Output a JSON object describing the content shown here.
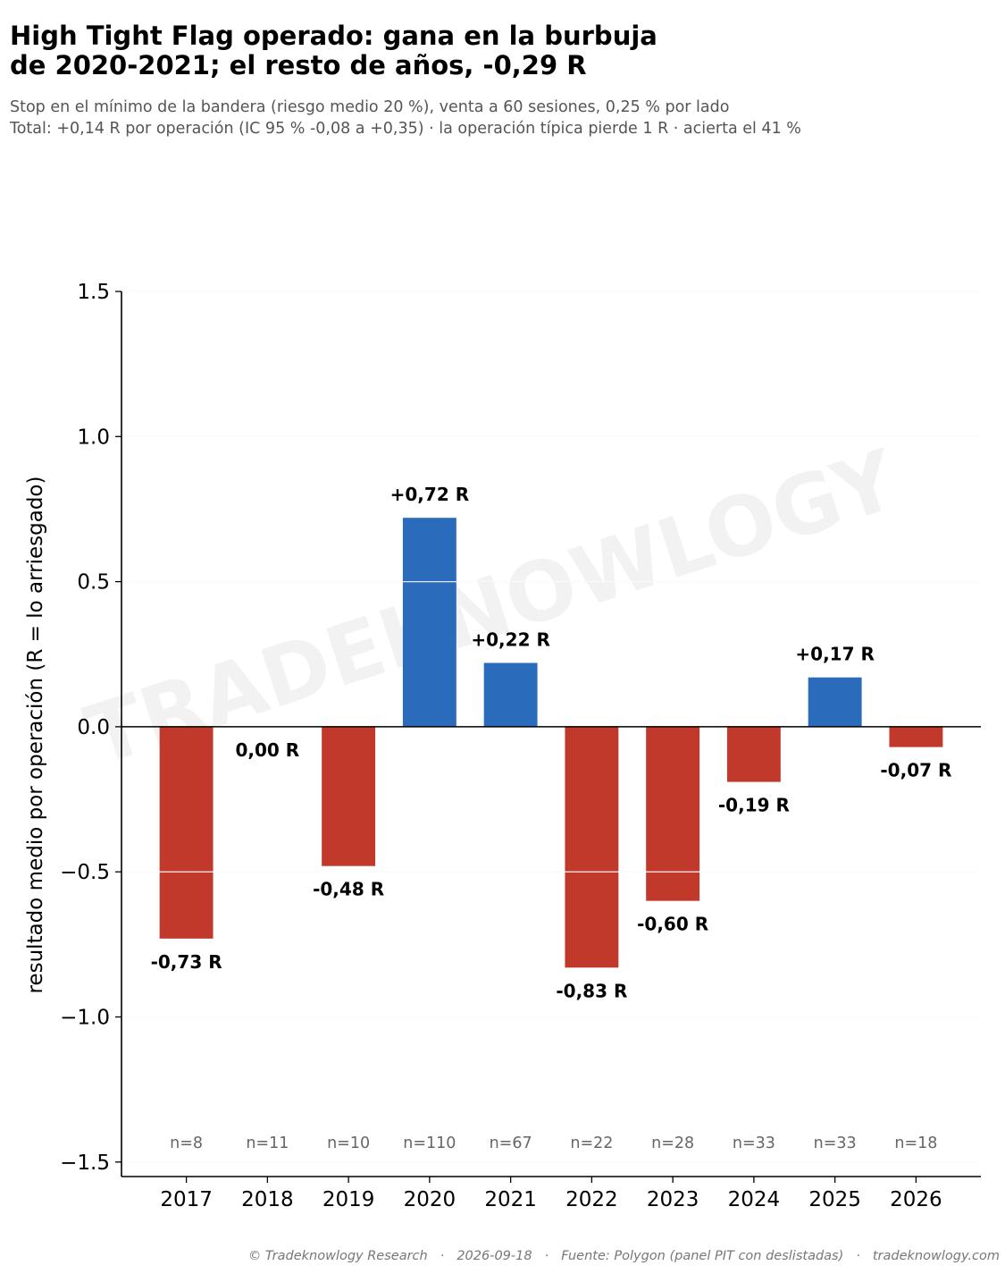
{
  "title_line1": "High Tight Flag operado: gana en la burbuja",
  "title_line2": "de 2020-2021; el resto de años, -0,29 R",
  "subtitle_line1": "Stop en el mínimo de la bandera (riesgo medio 20 %), venta a 60 sesiones, 0,25 % por lado",
  "subtitle_line2": "Total: +0,14 R por operación (IC 95 % -0,08 a +0,35) · la operación típica pierde 1 R · acierta el 41 %",
  "watermark": "TRADEKNOWLOGY",
  "footer": {
    "copyright": "© Tradeknowlogy Research",
    "date": "2026-09-18",
    "source": "Fuente: Polygon (panel PIT con deslistadas)",
    "site": "tradeknowlogy.com",
    "separator": "·"
  },
  "colors": {
    "positive": "#2a6bbb",
    "negative": "#c0392b",
    "grid": "#ebebeb",
    "count_text": "#666666"
  },
  "chart_data": {
    "type": "bar",
    "categories": [
      "2017",
      "2018",
      "2019",
      "2020",
      "2021",
      "2022",
      "2023",
      "2024",
      "2025",
      "2026"
    ],
    "values": [
      -0.73,
      0.0,
      -0.48,
      0.72,
      0.22,
      -0.83,
      -0.6,
      -0.19,
      0.17,
      -0.07
    ],
    "value_labels": [
      "-0,73 R",
      "0,00 R",
      "-0,48 R",
      "+0,72 R",
      "+0,22 R",
      "-0,83 R",
      "-0,60 R",
      "-0,19 R",
      "+0,17 R",
      "-0,07 R"
    ],
    "counts": [
      "n=8",
      "n=11",
      "n=10",
      "n=110",
      "n=67",
      "n=22",
      "n=28",
      "n=33",
      "n=33",
      "n=18"
    ],
    "ylabel": "resultado medio por operación (R = lo arriesgado)",
    "xlabel": "",
    "ylim": [
      -1.55,
      1.5
    ],
    "yticks": [
      1.5,
      1.0,
      0.5,
      0.0,
      -0.5,
      -1.0,
      -1.5
    ],
    "ytick_labels": [
      "1.5",
      "1.0",
      "0.5",
      "0.0",
      "−0.5",
      "−1.0",
      "−1.5"
    ],
    "grid": true
  }
}
